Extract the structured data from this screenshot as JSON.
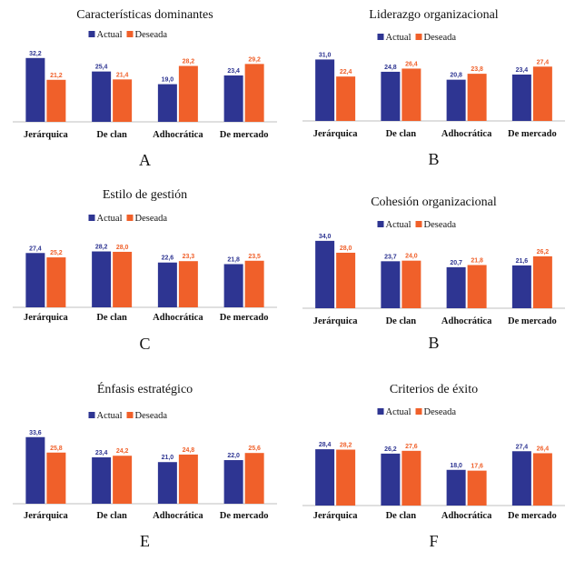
{
  "colors": {
    "actual": "#2e3592",
    "deseada": "#f0602a"
  },
  "legend": {
    "actual": "Actual",
    "deseada": "Deseada"
  },
  "chart_data": [
    {
      "type": "bar",
      "title": "Características dominantes",
      "letter": "A",
      "ylim": [
        0,
        35
      ],
      "categories": [
        "Jerárquica",
        "De clan",
        "Adhocrática",
        "De mercado"
      ],
      "series": [
        {
          "name": "Actual",
          "values": [
            32.2,
            25.4,
            19.0,
            23.4
          ],
          "labels": [
            "32,2",
            "25,4",
            "19,0",
            "23,4"
          ]
        },
        {
          "name": "Deseada",
          "values": [
            21.2,
            21.4,
            28.2,
            29.2
          ],
          "labels": [
            "21,2",
            "21,4",
            "28,2",
            "29,2"
          ]
        }
      ]
    },
    {
      "type": "bar",
      "title": "Liderazgo organizacional",
      "letter": "B",
      "ylim": [
        0,
        35
      ],
      "categories": [
        "Jerárquica",
        "De clan",
        "Adhocrática",
        "De mercado"
      ],
      "series": [
        {
          "name": "Actual",
          "values": [
            31.0,
            24.8,
            20.8,
            23.4
          ],
          "labels": [
            "31,0",
            "24,8",
            "20,8",
            "23,4"
          ]
        },
        {
          "name": "Deseada",
          "values": [
            22.4,
            26.4,
            23.8,
            27.4
          ],
          "labels": [
            "22,4",
            "26,4",
            "23,8",
            "27,4"
          ]
        }
      ]
    },
    {
      "type": "bar",
      "title": "Estilo de gestión",
      "letter": "C",
      "ylim": [
        0,
        35
      ],
      "categories": [
        "Jerárquica",
        "De clan",
        "Adhocrática",
        "De mercado"
      ],
      "series": [
        {
          "name": "Actual",
          "values": [
            27.4,
            28.2,
            22.6,
            21.8
          ],
          "labels": [
            "27,4",
            "28,2",
            "22,6",
            "21,8"
          ]
        },
        {
          "name": "Deseada",
          "values": [
            25.2,
            28.0,
            23.3,
            23.5
          ],
          "labels": [
            "25,2",
            "28,0",
            "23,3",
            "23,5"
          ]
        }
      ]
    },
    {
      "type": "bar",
      "title": "Cohesión organizacional",
      "letter": "B",
      "ylim": [
        0,
        35
      ],
      "categories": [
        "Jerárquica",
        "De clan",
        "Adhocrática",
        "De mercado"
      ],
      "series": [
        {
          "name": "Actual",
          "values": [
            34.0,
            23.7,
            20.7,
            21.6
          ],
          "labels": [
            "34,0",
            "23,7",
            "20,7",
            "21,6"
          ]
        },
        {
          "name": "Deseada",
          "values": [
            28.0,
            24.0,
            21.8,
            26.2
          ],
          "labels": [
            "28,0",
            "24,0",
            "21,8",
            "26,2"
          ]
        }
      ]
    },
    {
      "type": "bar",
      "title": "Énfasis estratégico",
      "letter": "E",
      "ylim": [
        0,
        35
      ],
      "categories": [
        "Jerárquica",
        "De clan",
        "Adhocrática",
        "De mercado"
      ],
      "series": [
        {
          "name": "Actual",
          "values": [
            33.6,
            23.4,
            21.0,
            22.0
          ],
          "labels": [
            "33,6",
            "23,4",
            "21,0",
            "22,0"
          ]
        },
        {
          "name": "Deseada",
          "values": [
            25.8,
            24.2,
            24.8,
            25.6
          ],
          "labels": [
            "25,8",
            "24,2",
            "24,8",
            "25,6"
          ]
        }
      ]
    },
    {
      "type": "bar",
      "title": "Criterios de éxito",
      "letter": "F",
      "ylim": [
        0,
        35
      ],
      "categories": [
        "Jerárquica",
        "De clan",
        "Adhocrática",
        "De mercado"
      ],
      "series": [
        {
          "name": "Actual",
          "values": [
            28.4,
            26.2,
            18.0,
            27.4
          ],
          "labels": [
            "28,4",
            "26,2",
            "18,0",
            "27,4"
          ]
        },
        {
          "name": "Deseada",
          "values": [
            28.2,
            27.6,
            17.6,
            26.4
          ],
          "labels": [
            "28,2",
            "27,6",
            "17,6",
            "26,4"
          ]
        }
      ]
    }
  ]
}
